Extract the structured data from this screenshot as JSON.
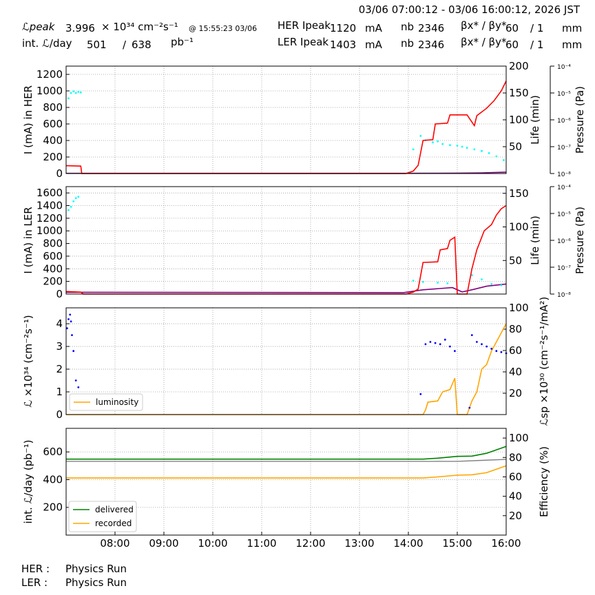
{
  "header": {
    "date_range": "03/06 07:00:12 - 03/06 16:00:12, 2026 JST",
    "lpeak_label": "ℒpeak",
    "lpeak_value": "3.996",
    "lpeak_unit": "× 10³⁴ cm⁻²s⁻¹",
    "lpeak_time": "@ 15:55:23 03/06",
    "intl_label": "int. ℒ/day",
    "intl_recorded": "501",
    "intl_sep": "/",
    "intl_delivered": "638",
    "intl_unit": "pb⁻¹",
    "her_label": "HER Ipeak",
    "her_value": "1120",
    "her_unit": "mA",
    "her_nb_label": "nb",
    "her_nb": "2346",
    "her_beta_label": "βx* / βy*",
    "her_beta_x": "60",
    "her_beta_y": "/ 1",
    "her_beta_unit": "mm",
    "ler_label": "LER Ipeak",
    "ler_value": "1403",
    "ler_unit": "mA",
    "ler_nb_label": "nb",
    "ler_nb": "2346",
    "ler_beta_label": "βx* / βy*",
    "ler_beta_x": "60",
    "ler_beta_y": "/ 1",
    "ler_beta_unit": "mm"
  },
  "footer": {
    "her_label": "HER :",
    "her_status": "Physics Run",
    "ler_label": "LER :",
    "ler_status": "Physics Run"
  },
  "colors": {
    "current": "#ff0000",
    "life": "#00ffff",
    "pressure": "#800080",
    "pressure2": "#008000",
    "luminosity": "#ffa500",
    "specific": "#0000ff",
    "delivered": "#008000",
    "recorded": "#ffa500",
    "efficiency": "#808080"
  },
  "chart_data": [
    {
      "id": "her",
      "type": "line",
      "ylabel": "I (mA) in HER",
      "ylabel2": "Life (min)",
      "ylabel3": "Pressure (Pa)",
      "ylim": [
        0,
        1300
      ],
      "yticks": [
        0,
        200,
        400,
        600,
        800,
        1000,
        1200
      ],
      "ylim2": [
        0,
        200
      ],
      "yticks2": [
        50,
        100,
        150,
        200
      ],
      "pressure_ticks": [
        "10⁻⁸",
        "10⁻⁷",
        "10⁻⁶",
        "10⁻⁵",
        "10⁻⁴"
      ],
      "current": [
        [
          7.0,
          95
        ],
        [
          7.3,
          90
        ],
        [
          7.32,
          0
        ],
        [
          13.95,
          0
        ],
        [
          14.1,
          30
        ],
        [
          14.2,
          100
        ],
        [
          14.3,
          400
        ],
        [
          14.5,
          410
        ],
        [
          14.55,
          600
        ],
        [
          14.8,
          610
        ],
        [
          14.85,
          710
        ],
        [
          15.2,
          710
        ],
        [
          15.35,
          580
        ],
        [
          15.4,
          700
        ],
        [
          15.6,
          790
        ],
        [
          15.75,
          880
        ],
        [
          15.9,
          1000
        ],
        [
          16.0,
          1120
        ]
      ],
      "pressure": [
        [
          7.0,
          5
        ],
        [
          13.9,
          5
        ],
        [
          14.3,
          8
        ],
        [
          15.0,
          12
        ],
        [
          15.5,
          20
        ],
        [
          16.0,
          40
        ]
      ],
      "lifetime_scatter": [
        [
          7.05,
          140
        ],
        [
          7.1,
          150
        ],
        [
          7.15,
          153
        ],
        [
          7.2,
          150
        ],
        [
          7.25,
          152
        ],
        [
          7.3,
          151
        ],
        [
          14.1,
          45
        ],
        [
          14.25,
          70
        ],
        [
          14.35,
          62
        ],
        [
          14.5,
          58
        ],
        [
          14.6,
          60
        ],
        [
          14.7,
          55
        ],
        [
          14.85,
          53
        ],
        [
          15.0,
          52
        ],
        [
          15.1,
          50
        ],
        [
          15.2,
          48
        ],
        [
          15.35,
          45
        ],
        [
          15.5,
          42
        ],
        [
          15.65,
          38
        ],
        [
          15.8,
          32
        ],
        [
          15.95,
          25
        ]
      ]
    },
    {
      "id": "ler",
      "type": "line",
      "ylabel": "I (mA) in LER",
      "ylabel2": "Life (min)",
      "ylabel3": "Pressure (Pa)",
      "ylim": [
        0,
        1700
      ],
      "yticks": [
        0,
        200,
        400,
        600,
        800,
        1000,
        1200,
        1400,
        1600
      ],
      "ylim2": [
        0,
        160
      ],
      "yticks2": [
        50,
        100,
        150
      ],
      "pressure_ticks": [
        "10⁻⁸",
        "10⁻⁷",
        "10⁻⁶",
        "10⁻⁵",
        "10⁻⁴"
      ],
      "current": [
        [
          7.0,
          40
        ],
        [
          7.3,
          30
        ],
        [
          7.35,
          0
        ],
        [
          13.95,
          0
        ],
        [
          14.1,
          30
        ],
        [
          14.2,
          80
        ],
        [
          14.3,
          500
        ],
        [
          14.6,
          510
        ],
        [
          14.65,
          700
        ],
        [
          14.8,
          720
        ],
        [
          14.85,
          850
        ],
        [
          14.95,
          900
        ],
        [
          15.0,
          0
        ],
        [
          15.2,
          0
        ],
        [
          15.3,
          400
        ],
        [
          15.4,
          700
        ],
        [
          15.55,
          1000
        ],
        [
          15.7,
          1100
        ],
        [
          15.8,
          1250
        ],
        [
          15.9,
          1350
        ],
        [
          16.0,
          1400
        ]
      ],
      "pressure": [
        [
          7.0,
          50
        ],
        [
          13.9,
          40
        ],
        [
          14.3,
          120
        ],
        [
          14.9,
          180
        ],
        [
          15.1,
          60
        ],
        [
          15.3,
          120
        ],
        [
          15.6,
          220
        ],
        [
          16.0,
          280
        ]
      ],
      "lifetime_scatter": [
        [
          7.05,
          125
        ],
        [
          7.1,
          130
        ],
        [
          7.15,
          138
        ],
        [
          7.2,
          143
        ],
        [
          7.25,
          145
        ],
        [
          14.1,
          20
        ],
        [
          14.3,
          18
        ],
        [
          14.6,
          17
        ],
        [
          14.8,
          16
        ],
        [
          15.3,
          28
        ],
        [
          15.5,
          22
        ],
        [
          15.7,
          15
        ],
        [
          15.9,
          13
        ]
      ]
    },
    {
      "id": "lum",
      "type": "line",
      "ylabel": "ℒ ×10³⁴ (cm⁻²s⁻¹)",
      "ylabel2": "ℒsp ×10³⁰ (cm⁻²s⁻¹/mA²)",
      "ylim": [
        0,
        4.7
      ],
      "yticks": [
        0,
        1,
        2,
        3,
        4
      ],
      "ylim2": [
        0,
        100
      ],
      "yticks2": [
        20,
        40,
        60,
        80,
        100
      ],
      "legend": [
        "luminosity"
      ],
      "legend_loc": "lower-left",
      "luminosity": [
        [
          7.0,
          0
        ],
        [
          14.3,
          0
        ],
        [
          14.35,
          0.2
        ],
        [
          14.4,
          0.55
        ],
        [
          14.6,
          0.6
        ],
        [
          14.7,
          1.0
        ],
        [
          14.85,
          1.1
        ],
        [
          14.95,
          1.6
        ],
        [
          15.0,
          0
        ],
        [
          15.2,
          0
        ],
        [
          15.3,
          0.6
        ],
        [
          15.4,
          1.0
        ],
        [
          15.5,
          2.0
        ],
        [
          15.6,
          2.2
        ],
        [
          15.7,
          2.8
        ],
        [
          15.8,
          3.2
        ],
        [
          15.9,
          3.6
        ],
        [
          16.0,
          4.0
        ]
      ],
      "specific_scatter": [
        [
          7.02,
          3.8
        ],
        [
          7.05,
          4.2
        ],
        [
          7.08,
          4.4
        ],
        [
          7.1,
          4.1
        ],
        [
          7.12,
          3.5
        ],
        [
          7.15,
          2.8
        ],
        [
          7.2,
          1.5
        ],
        [
          7.25,
          1.2
        ],
        [
          7.3,
          0.8
        ],
        [
          14.25,
          0.9
        ],
        [
          14.35,
          3.1
        ],
        [
          14.45,
          3.2
        ],
        [
          14.55,
          3.15
        ],
        [
          14.65,
          3.1
        ],
        [
          14.75,
          3.3
        ],
        [
          14.85,
          3.0
        ],
        [
          14.95,
          2.8
        ],
        [
          15.25,
          0.3
        ],
        [
          15.3,
          3.5
        ],
        [
          15.4,
          3.2
        ],
        [
          15.5,
          3.1
        ],
        [
          15.6,
          3.0
        ],
        [
          15.7,
          2.9
        ],
        [
          15.8,
          2.8
        ],
        [
          15.9,
          2.75
        ],
        [
          16.0,
          2.7
        ]
      ]
    },
    {
      "id": "intl",
      "type": "line",
      "ylabel": "int. ℒ/day (pb⁻¹)",
      "ylabel2": "Efficiency (%)",
      "ylim": [
        0,
        770
      ],
      "yticks": [
        200,
        400,
        600
      ],
      "ylim2": [
        0,
        110
      ],
      "yticks2": [
        20,
        40,
        60,
        80,
        100
      ],
      "legend": [
        "delivered",
        "recorded"
      ],
      "legend_loc": "lower-left",
      "xticks": [
        "08:00",
        "09:00",
        "10:00",
        "11:00",
        "12:00",
        "13:00",
        "14:00",
        "15:00",
        "16:00"
      ],
      "xlim": [
        7.0,
        16.0
      ],
      "delivered": [
        [
          7.0,
          548
        ],
        [
          14.3,
          548
        ],
        [
          14.6,
          555
        ],
        [
          15.0,
          568
        ],
        [
          15.3,
          570
        ],
        [
          15.6,
          590
        ],
        [
          15.8,
          615
        ],
        [
          16.0,
          640
        ]
      ],
      "recorded": [
        [
          7.0,
          412
        ],
        [
          14.3,
          412
        ],
        [
          14.6,
          420
        ],
        [
          15.0,
          432
        ],
        [
          15.3,
          435
        ],
        [
          15.6,
          450
        ],
        [
          15.8,
          475
        ],
        [
          16.0,
          500
        ]
      ],
      "efficiency": [
        [
          7.0,
          76
        ],
        [
          15.0,
          76
        ],
        [
          15.5,
          77
        ],
        [
          16.0,
          78
        ]
      ]
    }
  ]
}
